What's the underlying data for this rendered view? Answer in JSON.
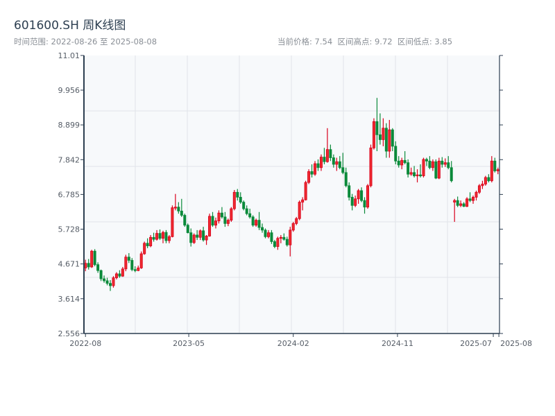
{
  "header": {
    "title": "601600.SH 周K线图",
    "range_text": "时间范围: 2022-08-26 至 2025-08-08",
    "stats_text": "当前价格: 7.54  区间高点: 9.72  区间低点: 3.85"
  },
  "colors": {
    "up": "#d9001b",
    "down": "#0b8a3a",
    "plot_bg": "#f7f9fb",
    "axis": "#2c3e50",
    "grid": "#e1e4e8"
  },
  "chart_data": {
    "type": "candlestick",
    "title": "601600.SH 周K线图",
    "interval": "weekly",
    "start": "2022-08-26",
    "end": "2025-08-08",
    "current": 7.54,
    "high": 9.72,
    "low": 3.85,
    "ylim": [
      2.556,
      11.01
    ],
    "yticks": [
      "2.556",
      "3.614",
      "4.671",
      "5.728",
      "6.785",
      "7.842",
      "8.899",
      "9.956",
      "11.01"
    ],
    "xticks": [
      {
        "label": "2022-08",
        "index": 0
      },
      {
        "label": "2023-05",
        "index": 33.3
      },
      {
        "label": "2024-02",
        "index": 67
      },
      {
        "label": "2024-11",
        "index": 100.6
      },
      {
        "label": "2025-07",
        "index": 131.5
      },
      {
        "label": "2025-08",
        "index": 133.3
      }
    ],
    "columns": [
      "open",
      "high",
      "low",
      "close"
    ],
    "candles": [
      [
        4.55,
        4.8,
        4.45,
        4.69
      ],
      [
        4.69,
        4.82,
        4.5,
        4.58
      ],
      [
        4.58,
        5.1,
        4.55,
        5.06
      ],
      [
        5.06,
        5.12,
        4.6,
        4.65
      ],
      [
        4.65,
        4.72,
        4.4,
        4.47
      ],
      [
        4.47,
        4.5,
        4.15,
        4.22
      ],
      [
        4.22,
        4.32,
        4.1,
        4.16
      ],
      [
        4.16,
        4.25,
        4.02,
        4.08
      ],
      [
        4.08,
        4.18,
        3.85,
        4.01
      ],
      [
        4.01,
        4.3,
        3.95,
        4.25
      ],
      [
        4.25,
        4.42,
        4.2,
        4.37
      ],
      [
        4.37,
        4.48,
        4.25,
        4.3
      ],
      [
        4.3,
        4.58,
        4.28,
        4.52
      ],
      [
        4.52,
        4.95,
        4.45,
        4.88
      ],
      [
        4.88,
        5.0,
        4.7,
        4.78
      ],
      [
        4.78,
        4.85,
        4.45,
        4.5
      ],
      [
        4.5,
        4.6,
        4.42,
        4.47
      ],
      [
        4.47,
        4.62,
        4.45,
        4.55
      ],
      [
        4.55,
        5.05,
        4.52,
        4.98
      ],
      [
        4.98,
        5.35,
        4.95,
        5.3
      ],
      [
        5.3,
        5.45,
        5.15,
        5.22
      ],
      [
        5.22,
        5.55,
        5.18,
        5.48
      ],
      [
        5.48,
        5.62,
        5.35,
        5.42
      ],
      [
        5.42,
        5.7,
        5.38,
        5.6
      ],
      [
        5.6,
        5.72,
        5.4,
        5.45
      ],
      [
        5.45,
        5.68,
        5.3,
        5.63
      ],
      [
        5.63,
        5.7,
        5.3,
        5.38
      ],
      [
        5.38,
        5.55,
        5.3,
        5.5
      ],
      [
        5.5,
        6.45,
        5.48,
        6.38
      ],
      [
        6.38,
        6.8,
        6.3,
        6.4
      ],
      [
        6.4,
        6.55,
        6.2,
        6.28
      ],
      [
        6.28,
        6.65,
        6.1,
        6.15
      ],
      [
        6.15,
        6.2,
        5.8,
        5.85
      ],
      [
        5.85,
        5.9,
        5.6,
        5.62
      ],
      [
        5.62,
        5.75,
        5.2,
        5.32
      ],
      [
        5.32,
        5.6,
        5.28,
        5.55
      ],
      [
        5.55,
        5.7,
        5.4,
        5.48
      ],
      [
        5.48,
        5.72,
        5.4,
        5.68
      ],
      [
        5.68,
        5.8,
        5.35,
        5.4
      ],
      [
        5.4,
        5.55,
        5.25,
        5.52
      ],
      [
        5.52,
        6.2,
        5.5,
        6.12
      ],
      [
        6.12,
        6.25,
        5.8,
        5.85
      ],
      [
        5.85,
        6.08,
        5.75,
        5.98
      ],
      [
        5.98,
        6.3,
        5.9,
        6.22
      ],
      [
        6.22,
        6.4,
        6.05,
        6.1
      ],
      [
        6.1,
        6.25,
        5.8,
        5.9
      ],
      [
        5.9,
        6.05,
        5.82,
        6.0
      ],
      [
        6.0,
        6.4,
        5.95,
        6.35
      ],
      [
        6.35,
        6.92,
        6.3,
        6.85
      ],
      [
        6.85,
        6.95,
        6.6,
        6.7
      ],
      [
        6.7,
        6.85,
        6.5,
        6.55
      ],
      [
        6.55,
        6.6,
        6.3,
        6.35
      ],
      [
        6.35,
        6.45,
        6.15,
        6.2
      ],
      [
        6.2,
        6.35,
        6.05,
        6.1
      ],
      [
        6.1,
        6.15,
        5.8,
        5.85
      ],
      [
        5.85,
        6.05,
        5.8,
        6.0
      ],
      [
        6.0,
        6.25,
        5.7,
        5.78
      ],
      [
        5.78,
        5.9,
        5.62,
        5.7
      ],
      [
        5.7,
        5.75,
        5.45,
        5.5
      ],
      [
        5.5,
        5.7,
        5.45,
        5.62
      ],
      [
        5.62,
        5.7,
        5.28,
        5.35
      ],
      [
        5.35,
        5.4,
        5.15,
        5.2
      ],
      [
        5.2,
        5.5,
        5.1,
        5.45
      ],
      [
        5.45,
        5.55,
        5.3,
        5.48
      ],
      [
        5.48,
        5.6,
        5.38,
        5.42
      ],
      [
        5.42,
        5.5,
        5.2,
        5.25
      ],
      [
        5.25,
        5.8,
        4.9,
        5.7
      ],
      [
        5.7,
        5.95,
        5.65,
        5.9
      ],
      [
        5.9,
        6.1,
        5.85,
        6.05
      ],
      [
        6.05,
        6.6,
        6.0,
        6.55
      ],
      [
        6.55,
        6.7,
        6.3,
        6.62
      ],
      [
        6.62,
        7.2,
        6.6,
        7.15
      ],
      [
        7.15,
        7.55,
        7.1,
        7.48
      ],
      [
        7.48,
        7.7,
        7.3,
        7.4
      ],
      [
        7.4,
        7.8,
        7.35,
        7.72
      ],
      [
        7.72,
        7.85,
        7.5,
        7.6
      ],
      [
        7.6,
        8.0,
        7.5,
        7.92
      ],
      [
        7.92,
        8.2,
        7.7,
        7.78
      ],
      [
        7.78,
        8.8,
        7.75,
        8.15
      ],
      [
        8.15,
        8.3,
        7.8,
        7.9
      ],
      [
        7.9,
        8.0,
        7.6,
        7.7
      ],
      [
        7.7,
        7.9,
        7.5,
        7.78
      ],
      [
        7.78,
        7.95,
        7.55,
        7.6
      ],
      [
        7.6,
        8.05,
        7.4,
        7.45
      ],
      [
        7.45,
        7.6,
        7.0,
        7.05
      ],
      [
        7.05,
        7.15,
        6.6,
        6.7
      ],
      [
        6.7,
        6.8,
        6.3,
        6.45
      ],
      [
        6.45,
        6.75,
        6.4,
        6.65
      ],
      [
        6.65,
        6.95,
        6.5,
        6.9
      ],
      [
        6.9,
        7.0,
        6.55,
        6.6
      ],
      [
        6.6,
        6.7,
        6.2,
        6.4
      ],
      [
        6.4,
        7.1,
        6.35,
        7.05
      ],
      [
        7.05,
        8.3,
        7.0,
        8.2
      ],
      [
        8.2,
        9.1,
        8.15,
        9.0
      ],
      [
        9.0,
        9.72,
        8.1,
        8.6
      ],
      [
        8.6,
        9.25,
        8.3,
        8.45
      ],
      [
        8.45,
        9.1,
        8.25,
        8.8
      ],
      [
        8.8,
        8.95,
        7.9,
        8.1
      ],
      [
        8.1,
        9.05,
        7.9,
        8.75
      ],
      [
        8.75,
        8.8,
        8.1,
        8.25
      ],
      [
        8.25,
        8.4,
        7.7,
        7.8
      ],
      [
        7.8,
        7.95,
        7.6,
        7.68
      ],
      [
        7.68,
        7.9,
        7.55,
        7.82
      ],
      [
        7.82,
        8.1,
        7.7,
        7.75
      ],
      [
        7.75,
        7.85,
        7.3,
        7.4
      ],
      [
        7.4,
        7.6,
        7.35,
        7.45
      ],
      [
        7.45,
        7.65,
        7.3,
        7.35
      ],
      [
        7.35,
        7.55,
        7.15,
        7.38
      ],
      [
        7.38,
        7.7,
        7.3,
        7.35
      ],
      [
        7.35,
        7.9,
        7.3,
        7.85
      ],
      [
        7.85,
        7.9,
        7.65,
        7.8
      ],
      [
        7.8,
        7.95,
        7.55,
        7.6
      ],
      [
        7.6,
        7.85,
        7.5,
        7.78
      ],
      [
        7.78,
        7.85,
        7.25,
        7.28
      ],
      [
        7.28,
        7.9,
        7.25,
        7.8
      ],
      [
        7.8,
        7.92,
        7.6,
        7.7
      ],
      [
        7.7,
        7.88,
        7.62,
        7.75
      ],
      [
        7.75,
        7.95,
        7.55,
        7.6
      ],
      [
        7.6,
        7.8,
        7.15,
        7.2
      ],
      [
        6.55,
        6.65,
        5.95,
        6.6
      ],
      [
        6.6,
        6.72,
        6.4,
        6.45
      ],
      [
        6.45,
        6.6,
        6.4,
        6.5
      ],
      [
        6.5,
        6.55,
        6.4,
        6.42
      ],
      [
        6.42,
        6.7,
        6.4,
        6.65
      ],
      [
        6.65,
        6.85,
        6.55,
        6.6
      ],
      [
        6.6,
        6.75,
        6.5,
        6.7
      ],
      [
        6.7,
        6.9,
        6.6,
        6.85
      ],
      [
        6.85,
        7.1,
        6.8,
        7.05
      ],
      [
        7.05,
        7.2,
        6.95,
        7.1
      ],
      [
        7.1,
        7.35,
        7.05,
        7.3
      ],
      [
        7.3,
        7.4,
        7.15,
        7.2
      ],
      [
        7.2,
        7.95,
        7.15,
        7.8
      ],
      [
        7.8,
        7.9,
        7.45,
        7.5
      ],
      [
        7.5,
        7.6,
        7.4,
        7.54
      ]
    ]
  }
}
